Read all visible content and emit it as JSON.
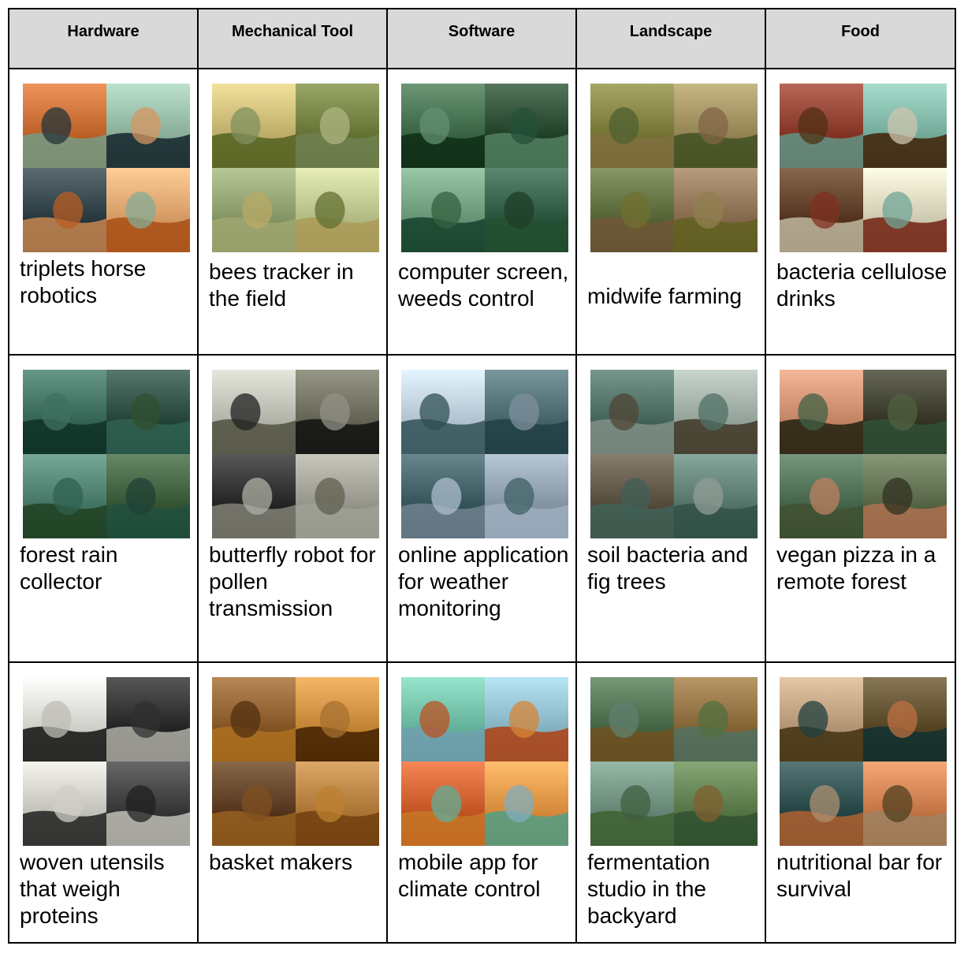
{
  "headers": [
    "Hardware",
    "Mechanical Tool",
    "Software",
    "Landscape",
    "Food"
  ],
  "rows": [
    {
      "cells": [
        {
          "caption": "triplets horse robotics",
          "palette": [
            "#c2682e",
            "#8fb5a0",
            "#2d3e44",
            "#e0a06a"
          ]
        },
        {
          "caption": "bees tracker in the field",
          "palette": [
            "#c4b470",
            "#6b7a3a",
            "#8a9a6a",
            "#b9c08a"
          ]
        },
        {
          "caption": "computer screen, weeds control",
          "palette": [
            "#3f6a4a",
            "#27472f",
            "#6d9a7a",
            "#2e5a44"
          ]
        },
        {
          "caption": "midwife farming",
          "palette": [
            "#7a7a3a",
            "#9a8a5a",
            "#5a6a3a",
            "#8a7050"
          ]
        },
        {
          "caption": "bacteria cellulose drinks",
          "palette": [
            "#8a3a2a",
            "#7ab0a0",
            "#5a3a20",
            "#d8d0b8"
          ]
        }
      ]
    },
    {
      "cells": [
        {
          "caption": "forest rain collector",
          "palette": [
            "#3a6a5a",
            "#2a4a40",
            "#4a7a6a",
            "#3a5a3a"
          ]
        },
        {
          "caption": "butterfly robot for pollen transmission",
          "palette": [
            "#b8bab0",
            "#6a6a5a",
            "#2a2a2a",
            "#9a9a90"
          ]
        },
        {
          "caption": "online application for weather monitoring",
          "palette": [
            "#b8c8d8",
            "#4a6a70",
            "#3a5a60",
            "#8a9aa8"
          ]
        },
        {
          "caption": "soil bacteria and fig trees",
          "palette": [
            "#4a6a60",
            "#9aa8a0",
            "#5a5040",
            "#5a7a70"
          ]
        },
        {
          "caption": "vegan pizza in a remote forest",
          "palette": [
            "#c88a6a",
            "#3a3a2a",
            "#4a6a50",
            "#5a6a4a"
          ]
        }
      ]
    },
    {
      "cells": [
        {
          "caption": "woven utensils that weigh proteins",
          "palette": [
            "#d8d8d0",
            "#2a2a2a",
            "#c8c8c0",
            "#3a3a3a"
          ]
        },
        {
          "caption": "basket makers",
          "palette": [
            "#8a5a2a",
            "#c88a3a",
            "#5a3a1a",
            "#b07a3a"
          ]
        },
        {
          "caption": "mobile app for climate control",
          "palette": [
            "#6ab8a0",
            "#8ab8c8",
            "#c85a2a",
            "#e09040"
          ]
        },
        {
          "caption": "fermentation studio in the backyard",
          "palette": [
            "#4a6a4a",
            "#8a6a3a",
            "#6a8a7a",
            "#5a7a4a"
          ]
        },
        {
          "caption": "nutritional bar for survival",
          "palette": [
            "#b89a7a",
            "#5a4a2a",
            "#2a4a4a",
            "#c87a4a"
          ]
        }
      ]
    }
  ]
}
